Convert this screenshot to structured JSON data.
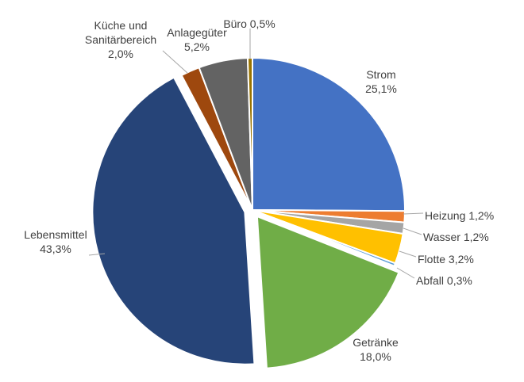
{
  "chart_data": {
    "type": "pie",
    "title": "",
    "slices": [
      {
        "label": "Strom",
        "value": 25.1,
        "value_label": "25,1%",
        "color": "#4472C4",
        "explode": 0
      },
      {
        "label": "Heizung",
        "value": 1.2,
        "value_label": "1,2%",
        "color": "#ED7D31",
        "explode": 0
      },
      {
        "label": "Wasser",
        "value": 1.2,
        "value_label": "1,2%",
        "color": "#A5A5A5",
        "explode": 0
      },
      {
        "label": "Flotte",
        "value": 3.2,
        "value_label": "3,2%",
        "color": "#FFC000",
        "explode": 0
      },
      {
        "label": "Abfall",
        "value": 0.3,
        "value_label": "0,3%",
        "color": "#5B9BD5",
        "explode": 0
      },
      {
        "label": "Getränke",
        "value": 18.0,
        "value_label": "18,0%",
        "color": "#70AD47",
        "explode": 1
      },
      {
        "label": "Lebensmittel",
        "value": 43.3,
        "value_label": "43,3%",
        "color": "#264478",
        "explode": 1
      },
      {
        "label": "Küche und Sanitärbereich",
        "value": 2.0,
        "value_label": "2,0%",
        "color": "#9E480E",
        "explode": 0
      },
      {
        "label": "Anlagegüter",
        "value": 5.2,
        "value_label": "5,2%",
        "color": "#636363",
        "explode": 0
      },
      {
        "label": "Büro",
        "value": 0.5,
        "value_label": "0,5%",
        "color": "#997300",
        "explode": 0
      }
    ],
    "label_lines": [
      [
        "Strom",
        "25,1%"
      ],
      [
        "Heizung 1,2%"
      ],
      [
        "Wasser 1,2%"
      ],
      [
        "Flotte 3,2%"
      ],
      [
        "Abfall 0,3%"
      ],
      [
        "Getränke",
        "18,0%"
      ],
      [
        "Lebensmittel",
        "43,3%"
      ],
      [
        "Küche und",
        "Sanitärbereich",
        "2,0%"
      ],
      [
        "Anlagegüter",
        "5,2%"
      ],
      [
        "Büro 0,5%"
      ]
    ],
    "start_angle": "12 o'clock",
    "direction": "clockwise",
    "legend": "none",
    "data_labels": "outside"
  }
}
